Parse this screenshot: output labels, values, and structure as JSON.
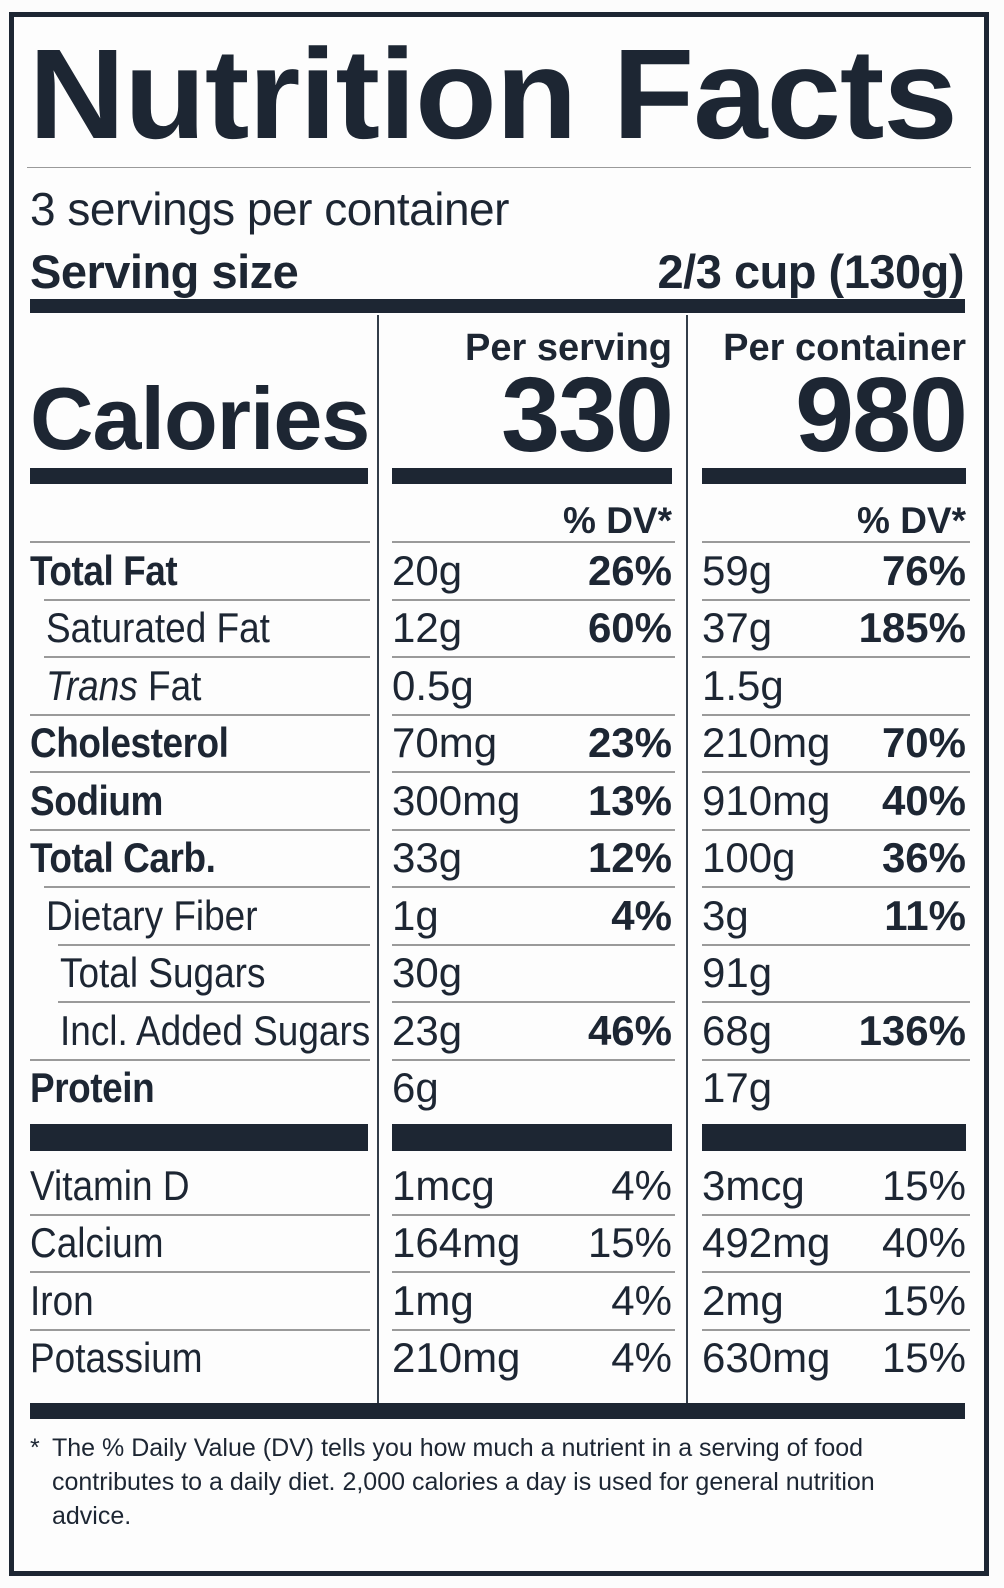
{
  "colors": {
    "ink": "#1d2633",
    "hairline": "#9a9a9a",
    "divider": "#333d49",
    "background": "#fdfdfd"
  },
  "label": {
    "title": "Nutrition Facts",
    "servings_per_container": "3 servings per container",
    "serving_size_label": "Serving size",
    "serving_size_value": "2/3 cup (130g)",
    "calories_word": "Calories",
    "per_serving": {
      "header": "Per serving",
      "calories": "330",
      "dv_header": "% DV*"
    },
    "per_container": {
      "header": "Per container",
      "calories": "980",
      "dv_header": "% DV*"
    },
    "nutrients": [
      {
        "name": "Total Fat",
        "s_amt": "20g",
        "s_dv": "26%",
        "c_amt": "59g",
        "c_dv": "76%"
      },
      {
        "name": "Saturated Fat",
        "s_amt": "12g",
        "s_dv": "60%",
        "c_amt": "37g",
        "c_dv": "185%"
      },
      {
        "name_italic": "Trans",
        "name_rest": " Fat",
        "s_amt": "0.5g",
        "s_dv": "",
        "c_amt": "1.5g",
        "c_dv": ""
      },
      {
        "name": "Cholesterol",
        "s_amt": "70mg",
        "s_dv": "23%",
        "c_amt": "210mg",
        "c_dv": "70%"
      },
      {
        "name": "Sodium",
        "s_amt": "300mg",
        "s_dv": "13%",
        "c_amt": "910mg",
        "c_dv": "40%"
      },
      {
        "name": "Total Carb.",
        "s_amt": "33g",
        "s_dv": "12%",
        "c_amt": "100g",
        "c_dv": "36%"
      },
      {
        "name": "Dietary Fiber",
        "s_amt": "1g",
        "s_dv": "4%",
        "c_amt": "3g",
        "c_dv": "11%"
      },
      {
        "name": "Total Sugars",
        "s_amt": "30g",
        "s_dv": "",
        "c_amt": "91g",
        "c_dv": ""
      },
      {
        "name": "Incl. Added Sugars",
        "s_amt": "23g",
        "s_dv": "46%",
        "c_amt": "68g",
        "c_dv": "136%"
      },
      {
        "name": "Protein",
        "s_amt": "6g",
        "s_dv": "",
        "c_amt": "17g",
        "c_dv": ""
      }
    ],
    "vitamins": [
      {
        "name": "Vitamin D",
        "s_amt": "1mcg",
        "s_dv": "4%",
        "c_amt": "3mcg",
        "c_dv": "15%"
      },
      {
        "name": "Calcium",
        "s_amt": "164mg",
        "s_dv": "15%",
        "c_amt": "492mg",
        "c_dv": "40%"
      },
      {
        "name": "Iron",
        "s_amt": "1mg",
        "s_dv": "4%",
        "c_amt": "2mg",
        "c_dv": "15%"
      },
      {
        "name": "Potassium",
        "s_amt": "210mg",
        "s_dv": "4%",
        "c_amt": "630mg",
        "c_dv": "15%"
      }
    ],
    "footnote_star": "*",
    "footnote_text": "The % Daily Value (DV) tells you how much a nutrient in a serving of food contributes to a daily diet. 2,000 calories a day is used for general nutrition advice."
  }
}
